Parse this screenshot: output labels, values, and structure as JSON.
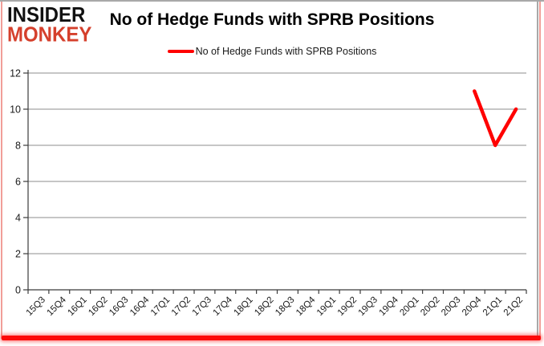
{
  "logo": {
    "line1": "INSIDER",
    "line2": "MONKEY",
    "line2_color": "#d5402c"
  },
  "header": {
    "title": "No of Hedge Funds with SPRB Positions"
  },
  "legend": {
    "label": "No of Hedge Funds with SPRB Positions",
    "line_color": "#ff0000"
  },
  "chart_data": {
    "type": "line",
    "title": "No of Hedge Funds with SPRB Positions",
    "categories": [
      "15Q3",
      "15Q4",
      "16Q1",
      "16Q2",
      "16Q3",
      "16Q4",
      "17Q1",
      "17Q2",
      "17Q3",
      "17Q4",
      "18Q1",
      "18Q2",
      "18Q3",
      "18Q4",
      "19Q1",
      "19Q2",
      "19Q3",
      "19Q4",
      "20Q1",
      "20Q2",
      "20Q3",
      "20Q4",
      "21Q1",
      "21Q2"
    ],
    "series": [
      {
        "name": "No of Hedge Funds with SPRB Positions",
        "color": "#ff0000",
        "values": [
          null,
          null,
          null,
          null,
          null,
          null,
          null,
          null,
          null,
          null,
          null,
          null,
          null,
          null,
          null,
          null,
          null,
          null,
          null,
          null,
          null,
          11,
          8,
          10
        ]
      }
    ],
    "ylim": [
      0,
      12
    ],
    "yticks": [
      0,
      2,
      4,
      6,
      8,
      10,
      12
    ],
    "grid": true,
    "legend_position": "top",
    "xlabel": "",
    "ylabel": ""
  },
  "colors": {
    "grid": "#8c8c8c",
    "axis": "#3b3b3b",
    "tick_label": "#1a1a1a",
    "frame_gray": "#a8a8a8",
    "frame_pink": "#f19e98",
    "frame_red": "#fd0a0a"
  }
}
